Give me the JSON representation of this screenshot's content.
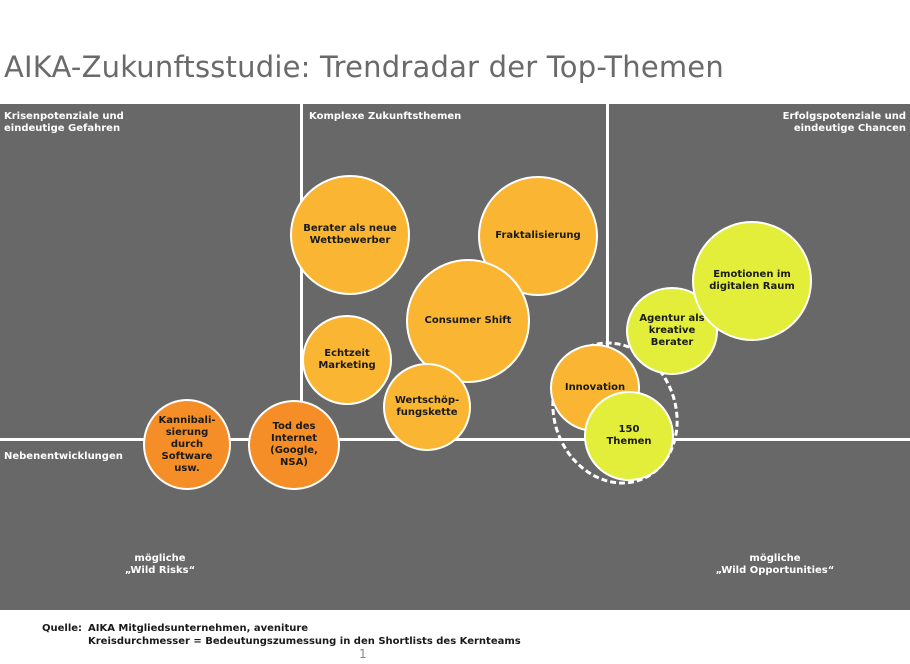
{
  "title": "AIKA-Zukunftsstudie: Trendradar der Top-Themen",
  "quadrants": {
    "left": "Krisenpotenziale und\neindeutige Gefahren",
    "center": "Komplexe Zukunftsthemen",
    "right": "Erfolgspotenziale und\neindeutige Chancen",
    "side": "Nebenentwicklungen",
    "bottom_left": "mögliche\n„Wild Risks“",
    "bottom_right": "mögliche\n„Wild Opportunities“"
  },
  "bubbles": {
    "berater": "Berater als neue\nWettbewerber",
    "fraktalisierung": "Fraktalisierung",
    "consumer_shift": "Consumer Shift",
    "echtzeit": "Echtzeit\nMarketing",
    "wertschoepfung": "Wertschöp-\nfungskette",
    "kannibalisierung": "Kannibali-\nsierung\ndurch\nSoftware\nusw.",
    "tod_internet": "Tod des\nInternet\n(Google,\nNSA)",
    "innovation": "Innovation",
    "themen150": "150\nThemen",
    "agentur": "Agentur als\nkreative\nBerater",
    "emotionen": "Emotionen im\ndigitalen Raum"
  },
  "source": {
    "key": "Quelle:",
    "line1": "AIKA Mitgliedsunternehmen, aveniture",
    "line2": "Kreisdurchmesser = Bedeutungszumessung in den Shortlists des Kernteams"
  },
  "page_number": "1",
  "colors": {
    "panel": "#686868",
    "yellow": "#fab632",
    "orange": "#f68e27",
    "lime": "#e3ee3a"
  }
}
